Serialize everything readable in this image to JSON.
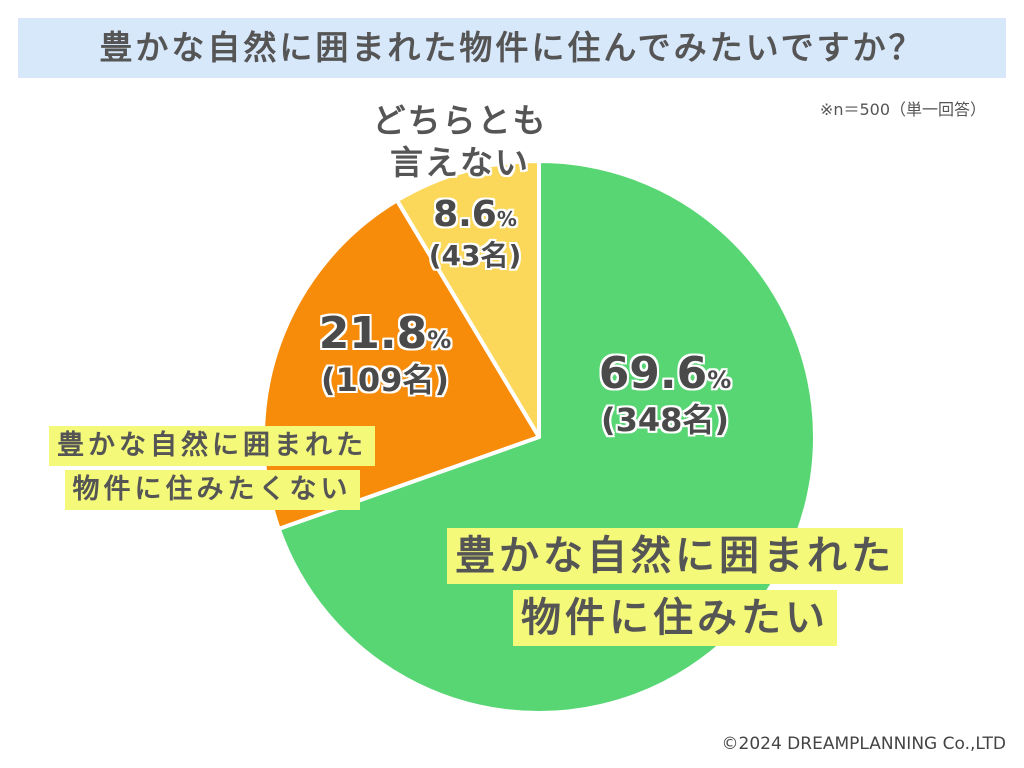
{
  "title": "豊かな自然に囲まれた物件に住んでみたいですか？",
  "note": "※n＝500（単一回答）",
  "copyright": "©2024 DREAMPLANNING Co.,LTD",
  "chart_data": {
    "type": "pie",
    "title": "豊かな自然に囲まれた物件に住んでみたいですか？",
    "categories": [
      "豊かな自然に囲まれた物件に住みたい",
      "豊かな自然に囲まれた物件に住みたくない",
      "どちらとも言えない"
    ],
    "values": [
      69.6,
      21.8,
      8.6
    ],
    "counts": [
      348,
      109,
      43
    ],
    "colors": [
      "#57d673",
      "#f78c0a",
      "#fbd85a"
    ],
    "slices": [
      {
        "label_line1": "豊かな自然に囲まれた",
        "label_line2": "物件に住みたい",
        "pct": "69.6",
        "count": "(348名)"
      },
      {
        "label_line1": "豊かな自然に囲まれた",
        "label_line2": "物件に住みたくない",
        "pct": "21.8",
        "count": "(109名)"
      },
      {
        "label_line1": "どちらとも",
        "label_line2": "言えない",
        "pct": "8.6",
        "count": "(43名)"
      }
    ],
    "pct_unit": "%",
    "start": "top (12 o'clock)",
    "direction": "clockwise"
  }
}
